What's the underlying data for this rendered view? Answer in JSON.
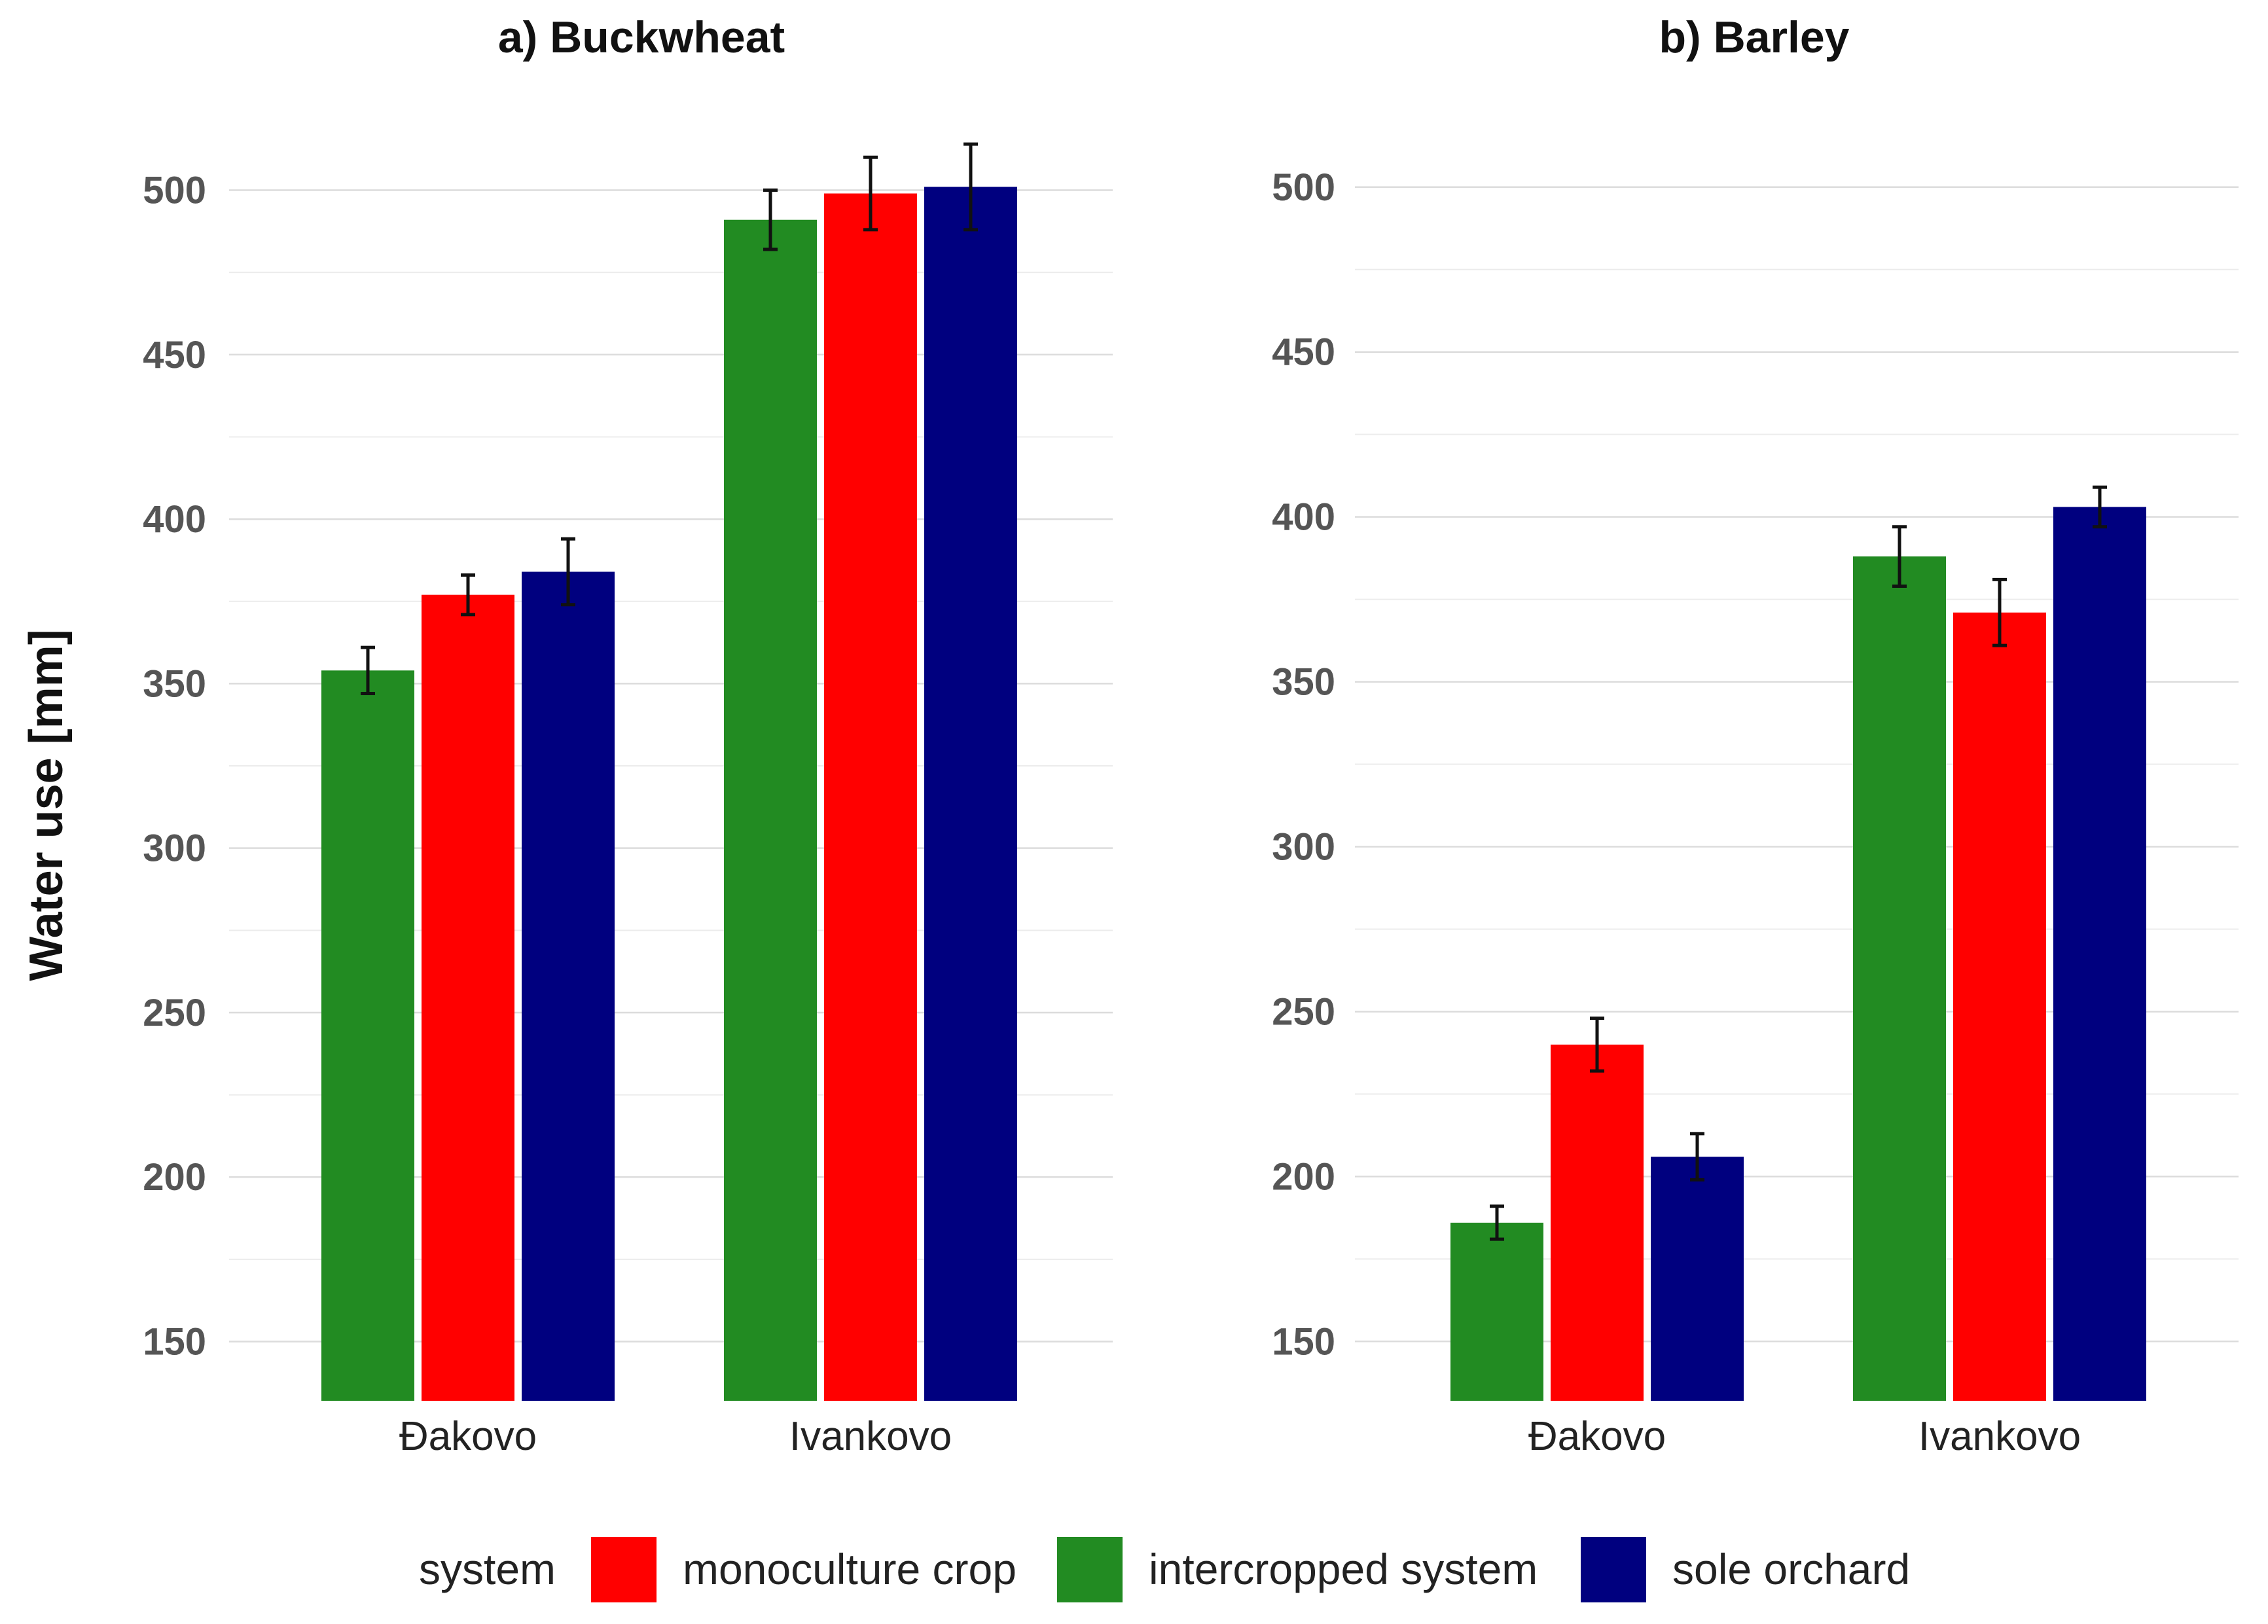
{
  "chart_data": [
    {
      "type": "bar",
      "title": "a) Buckwheat",
      "ylabel": "Water use [mm]",
      "xlabel": "",
      "ylim": [
        132,
        520
      ],
      "yticks": [
        150,
        200,
        250,
        300,
        350,
        400,
        450,
        500
      ],
      "categories": [
        "Đakovo",
        "Ivankovo"
      ],
      "series": [
        {
          "name": "intercropped system",
          "values": [
            354,
            491
          ],
          "errors": [
            7,
            9
          ]
        },
        {
          "name": "monoculture crop",
          "values": [
            377,
            499
          ],
          "errors": [
            6,
            11
          ]
        },
        {
          "name": "sole orchard",
          "values": [
            384,
            501
          ],
          "errors": [
            10,
            13
          ]
        }
      ]
    },
    {
      "type": "bar",
      "title": "b) Barley",
      "ylabel": "",
      "xlabel": "",
      "ylim": [
        132,
        520
      ],
      "yticks": [
        150,
        200,
        250,
        300,
        350,
        400,
        450,
        500
      ],
      "categories": [
        "Đakovo",
        "Ivankovo"
      ],
      "series": [
        {
          "name": "intercropped system",
          "values": [
            186,
            388
          ],
          "errors": [
            5,
            9
          ]
        },
        {
          "name": "monoculture crop",
          "values": [
            240,
            371
          ],
          "errors": [
            8,
            10
          ]
        },
        {
          "name": "sole orchard",
          "values": [
            206,
            403
          ],
          "errors": [
            7,
            6
          ]
        }
      ]
    }
  ],
  "legend": {
    "title": "system",
    "entries": [
      {
        "name": "monoculture crop",
        "color": "#ff0000"
      },
      {
        "name": "intercropped system",
        "color": "#228b22"
      },
      {
        "name": "sole orchard",
        "color": "#00007f"
      }
    ]
  },
  "colors": {
    "intercropped system": "#228b22",
    "monoculture crop": "#ff0000",
    "sole orchard": "#00007f"
  }
}
